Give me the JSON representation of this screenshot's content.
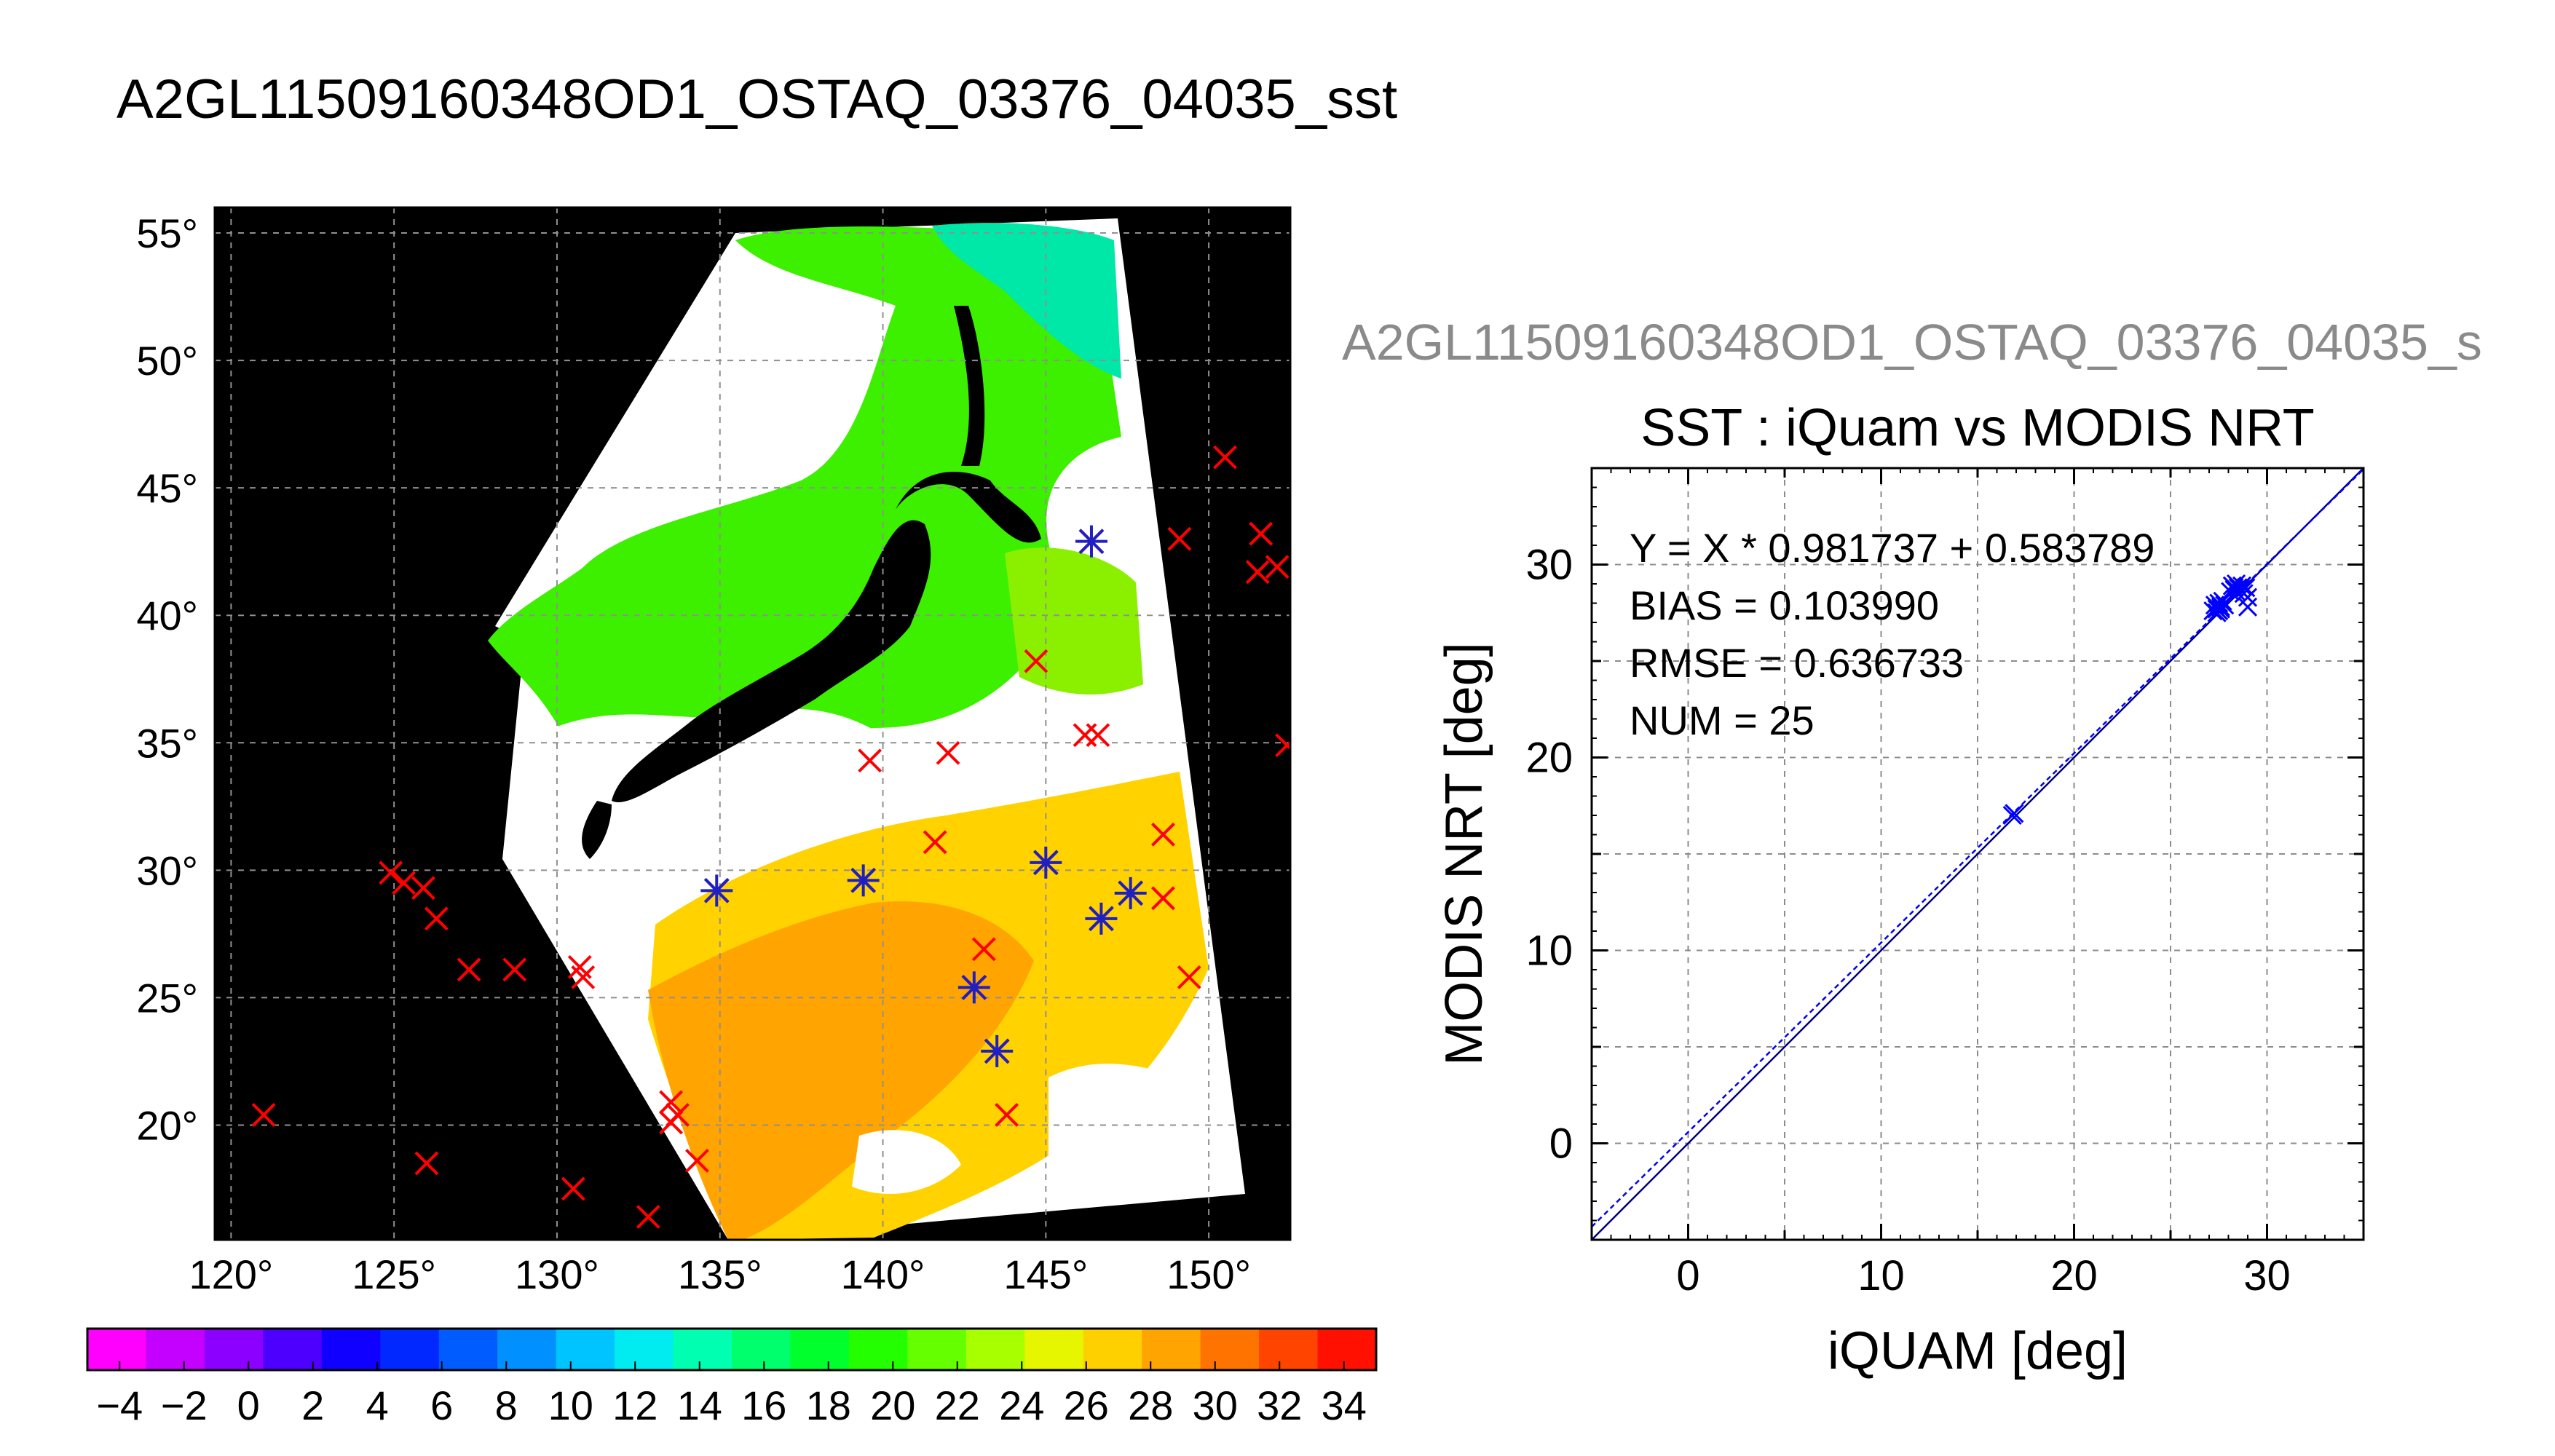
{
  "main_title": "A2GL11509160348OD1_OSTAQ_03376_04035_sst",
  "map": {
    "lon_ticks": [
      120,
      125,
      130,
      135,
      140,
      145,
      150
    ],
    "lat_ticks": [
      20,
      25,
      30,
      35,
      40,
      45,
      50,
      55
    ],
    "lon_range": [
      119.5,
      152.5
    ],
    "lat_range": [
      15.5,
      56.0
    ],
    "degree_symbol": "°",
    "background_color": "#000000",
    "cloud_color": "#ffffff",
    "iquam_points": [
      [
        121.0,
        20.4
      ],
      [
        124.9,
        29.9
      ],
      [
        125.3,
        29.5
      ],
      [
        125.9,
        29.3
      ],
      [
        126.3,
        28.1
      ],
      [
        126.0,
        18.5
      ],
      [
        127.3,
        26.1
      ],
      [
        128.7,
        26.1
      ],
      [
        130.5,
        17.5
      ],
      [
        130.7,
        26.2
      ],
      [
        130.8,
        25.8
      ],
      [
        132.8,
        16.4
      ],
      [
        133.5,
        20.9
      ],
      [
        133.7,
        20.4
      ],
      [
        133.5,
        20.1
      ],
      [
        134.3,
        18.6
      ],
      [
        134.9,
        29.2
      ],
      [
        139.6,
        34.3
      ],
      [
        139.4,
        29.6
      ],
      [
        141.6,
        31.1
      ],
      [
        142.0,
        34.6
      ],
      [
        142.8,
        25.4
      ],
      [
        143.1,
        26.9
      ],
      [
        143.5,
        22.9
      ],
      [
        143.8,
        20.4
      ],
      [
        144.7,
        38.2
      ],
      [
        145.0,
        30.3
      ],
      [
        146.2,
        35.3
      ],
      [
        146.6,
        35.3
      ],
      [
        146.4,
        42.9
      ],
      [
        146.7,
        28.1
      ],
      [
        147.6,
        29.1
      ],
      [
        148.6,
        31.4
      ],
      [
        148.6,
        28.9
      ],
      [
        149.1,
        43.0
      ],
      [
        149.4,
        25.8
      ],
      [
        150.5,
        46.2
      ],
      [
        151.6,
        43.2
      ],
      [
        151.5,
        41.7
      ],
      [
        152.1,
        41.9
      ],
      [
        152.4,
        34.9
      ]
    ],
    "matched_points": [
      [
        134.9,
        29.2
      ],
      [
        139.4,
        29.6
      ],
      [
        142.8,
        25.4
      ],
      [
        143.5,
        22.9
      ],
      [
        145.0,
        30.3
      ],
      [
        146.4,
        42.9
      ],
      [
        146.7,
        28.1
      ],
      [
        147.6,
        29.1
      ]
    ]
  },
  "colorbar": {
    "tick_labels": [
      "−4",
      "−2",
      "0",
      "2",
      "4",
      "6",
      "8",
      "10",
      "12",
      "14",
      "16",
      "18",
      "20",
      "22",
      "24",
      "26",
      "28",
      "30",
      "32",
      "34"
    ],
    "range": [
      -5,
      35
    ],
    "colors": [
      "#ff00ff",
      "#c400ff",
      "#8c00ff",
      "#4e00ff",
      "#1000ff",
      "#0028ff",
      "#005cff",
      "#0090ff",
      "#00c4ff",
      "#00ecf0",
      "#00ffb0",
      "#00ff6c",
      "#00ff2c",
      "#24ff00",
      "#66ff00",
      "#a8ff00",
      "#e6f500",
      "#ffd000",
      "#ffa400",
      "#ff7400",
      "#ff4400",
      "#ff1000"
    ]
  },
  "scatter": {
    "subtitle": "A2GL11509160348OD1_OSTAQ_03376_04035_s",
    "title": "SST : iQuam vs MODIS NRT",
    "stats": {
      "fit": "Y = X * 0.981737 + 0.583789",
      "bias": "BIAS = 0.103990",
      "rmse": "RMSE = 0.636733",
      "num": "NUM = 25"
    }
  },
  "chart_data": {
    "type": "scatter",
    "title": "SST : iQuam vs MODIS NRT",
    "xlabel": "iQUAM [deg]",
    "ylabel": "MODIS NRT [deg]",
    "xlim": [
      -5,
      35
    ],
    "ylim": [
      -5,
      35
    ],
    "xticks": [
      0,
      10,
      20,
      30
    ],
    "yticks": [
      0,
      10,
      20,
      30
    ],
    "grid": true,
    "series": [
      {
        "x": [
          16.8,
          16.9,
          27.2,
          27.3,
          27.4,
          27.5,
          27.6,
          27.6,
          27.7,
          27.8,
          28.1,
          28.2,
          28.3,
          28.4,
          28.4,
          28.5,
          28.6,
          28.7,
          28.8,
          28.9,
          29.0,
          29.0,
          27.4,
          27.5,
          28.3
        ],
        "y": [
          17.0,
          17.1,
          27.6,
          27.9,
          27.5,
          28.0,
          27.7,
          27.8,
          28.1,
          27.9,
          28.6,
          28.9,
          28.7,
          28.6,
          29.0,
          28.8,
          28.7,
          28.9,
          28.5,
          28.8,
          27.8,
          28.3,
          27.7,
          27.6,
          28.8
        ],
        "color": "#0000ff"
      }
    ],
    "lines": [
      {
        "slope": 1.0,
        "intercept": 0.0,
        "color": "#000080",
        "dash": "solid"
      },
      {
        "slope": 0.981737,
        "intercept": 0.583789,
        "color": "#0000ff",
        "dash": "dashed"
      }
    ]
  }
}
